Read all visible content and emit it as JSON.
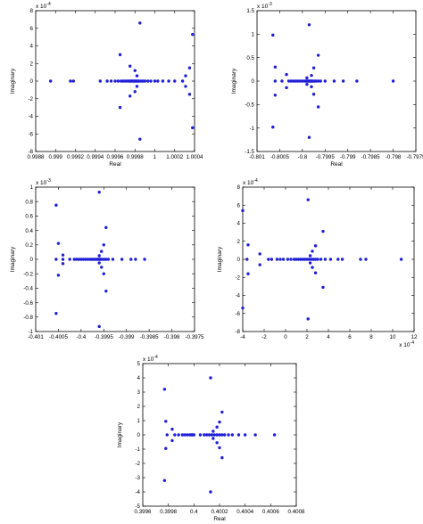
{
  "point_color": "#1f1fd6",
  "chart_data": [
    {
      "type": "scatter",
      "xlabel": "Real",
      "ylabel": "Imaginary",
      "xlim": [
        0.9988,
        1.0004
      ],
      "ylim": [
        -8,
        8
      ],
      "xticks": [
        0.9988,
        0.999,
        0.9992,
        0.9994,
        0.9996,
        0.9998,
        1,
        1.0002,
        1.0004
      ],
      "xtick_labels": [
        "0.9988",
        "0.999",
        "0.9992",
        "0.9994",
        "0.9996",
        "0.9998",
        "1",
        "1.0002",
        "1.0004"
      ],
      "yticks": [
        -8,
        -6,
        -4,
        -2,
        0,
        2,
        4,
        6,
        8
      ],
      "ytick_labels": [
        "-8",
        "-6",
        "-4",
        "-2",
        "0",
        "2",
        "4",
        "6",
        "8"
      ],
      "x_exponent": "",
      "y_exponent": "x 10^-4",
      "points": [
        [
          0.99895,
          0
        ],
        [
          0.99915,
          0
        ],
        [
          0.99918,
          0
        ],
        [
          0.99945,
          0
        ],
        [
          0.99952,
          0
        ],
        [
          0.99956,
          0
        ],
        [
          0.9996,
          0
        ],
        [
          0.99963,
          0
        ],
        [
          0.99966,
          0
        ],
        [
          0.99968,
          0
        ],
        [
          0.9997,
          0
        ],
        [
          0.99972,
          0
        ],
        [
          0.99974,
          0
        ],
        [
          0.99975,
          0
        ],
        [
          0.99976,
          0
        ],
        [
          0.99977,
          0
        ],
        [
          0.99978,
          0
        ],
        [
          0.99979,
          0
        ],
        [
          0.9998,
          0
        ],
        [
          0.99981,
          0
        ],
        [
          0.99982,
          0
        ],
        [
          0.99983,
          0
        ],
        [
          0.99984,
          0
        ],
        [
          0.99986,
          0
        ],
        [
          0.99988,
          0
        ],
        [
          0.9999,
          0
        ],
        [
          0.99993,
          0
        ],
        [
          0.99996,
          0
        ],
        [
          1.0,
          0
        ],
        [
          1.00003,
          0
        ],
        [
          1.00008,
          0
        ],
        [
          1.00014,
          0
        ],
        [
          1.0002,
          0
        ],
        [
          1.00028,
          0
        ],
        [
          0.99965,
          3.0
        ],
        [
          0.99965,
          -3.0
        ],
        [
          0.99975,
          1.7
        ],
        [
          0.99975,
          -1.7
        ],
        [
          0.9998,
          1.2
        ],
        [
          0.9998,
          -1.2
        ],
        [
          0.99982,
          0.6
        ],
        [
          0.99982,
          -0.6
        ],
        [
          0.99985,
          6.6
        ],
        [
          0.99985,
          -6.6
        ],
        [
          1.00038,
          5.3
        ],
        [
          1.00038,
          -5.3
        ],
        [
          1.00035,
          1.5
        ],
        [
          1.00035,
          -1.5
        ],
        [
          1.00031,
          0.6
        ],
        [
          1.00031,
          -0.6
        ]
      ]
    },
    {
      "type": "scatter",
      "xlabel": "Real",
      "ylabel": "Imaginary",
      "xlim": [
        -0.801,
        -0.7975
      ],
      "ylim": [
        -1.5,
        1.5
      ],
      "xticks": [
        -0.801,
        -0.8005,
        -0.8,
        -0.7995,
        -0.799,
        -0.7985,
        -0.798,
        -0.7975
      ],
      "xtick_labels": [
        "-0.801",
        "-0.8005",
        "-0.8",
        "-0.7995",
        "-0.799",
        "-0.7985",
        "-0.798",
        "-0.7975"
      ],
      "yticks": [
        -1.5,
        -1,
        -0.5,
        0,
        0.5,
        1,
        1.5
      ],
      "ytick_labels": [
        "-1.5",
        "-1",
        "-0.5",
        "0",
        "0.5",
        "1",
        "1.5"
      ],
      "x_exponent": "",
      "y_exponent": "x 10^-3",
      "points": [
        [
          -0.8006,
          0
        ],
        [
          -0.80045,
          0
        ],
        [
          -0.8003,
          0
        ],
        [
          -0.80025,
          0
        ],
        [
          -0.8002,
          0
        ],
        [
          -0.80015,
          0
        ],
        [
          -0.8001,
          0
        ],
        [
          -0.80005,
          0
        ],
        [
          -0.8,
          0
        ],
        [
          -0.79995,
          0
        ],
        [
          -0.79992,
          0
        ],
        [
          -0.7999,
          0
        ],
        [
          -0.79988,
          0
        ],
        [
          -0.79986,
          0
        ],
        [
          -0.79984,
          0
        ],
        [
          -0.79982,
          0
        ],
        [
          -0.7998,
          0
        ],
        [
          -0.79978,
          0
        ],
        [
          -0.79976,
          0
        ],
        [
          -0.79973,
          0
        ],
        [
          -0.7997,
          0
        ],
        [
          -0.79965,
          0
        ],
        [
          -0.7996,
          0
        ],
        [
          -0.7995,
          0
        ],
        [
          -0.7993,
          0
        ],
        [
          -0.7991,
          0
        ],
        [
          -0.7988,
          0
        ],
        [
          -0.798,
          0
        ],
        [
          -0.80065,
          0.98
        ],
        [
          -0.80065,
          -0.98
        ],
        [
          -0.8006,
          0.3
        ],
        [
          -0.8006,
          -0.3
        ],
        [
          -0.80035,
          0.14
        ],
        [
          -0.80035,
          -0.14
        ],
        [
          -0.79985,
          1.2
        ],
        [
          -0.79985,
          -1.2
        ],
        [
          -0.79965,
          0.55
        ],
        [
          -0.79965,
          -0.55
        ],
        [
          -0.79975,
          0.28
        ],
        [
          -0.79975,
          -0.28
        ],
        [
          -0.7998,
          0.12
        ],
        [
          -0.7998,
          -0.12
        ],
        [
          -0.7999,
          0.07
        ],
        [
          -0.7999,
          -0.07
        ]
      ]
    },
    {
      "type": "scatter",
      "xlabel": "",
      "ylabel": "Imaginary",
      "xlim": [
        -0.401,
        -0.3975
      ],
      "ylim": [
        -1,
        1
      ],
      "xticks": [
        -0.401,
        -0.4005,
        -0.4,
        -0.3995,
        -0.399,
        -0.3985,
        -0.398,
        -0.3975
      ],
      "xtick_labels": [
        "-0.401",
        "-0.4005",
        "-0.4",
        "-0.3995",
        "-0.399",
        "-0.3985",
        "-0.398",
        "-0.3975"
      ],
      "yticks": [
        -1,
        -0.8,
        -0.6,
        -0.4,
        -0.2,
        0,
        0.2,
        0.4,
        0.6,
        0.8,
        1
      ],
      "ytick_labels": [
        "-1",
        "-0.8",
        "-0.6",
        "-0.4",
        "-0.2",
        "0",
        "0.2",
        "0.4",
        "0.6",
        "0.8",
        "1"
      ],
      "x_exponent": "",
      "y_exponent": "x 10^-3",
      "points": [
        [
          -0.40055,
          0
        ],
        [
          -0.4004,
          0
        ],
        [
          -0.40025,
          0
        ],
        [
          -0.40015,
          0
        ],
        [
          -0.4001,
          0
        ],
        [
          -0.40005,
          0
        ],
        [
          -0.4,
          0
        ],
        [
          -0.39995,
          0
        ],
        [
          -0.3999,
          0
        ],
        [
          -0.39985,
          0
        ],
        [
          -0.3998,
          0
        ],
        [
          -0.39976,
          0
        ],
        [
          -0.39972,
          0
        ],
        [
          -0.39968,
          0
        ],
        [
          -0.39965,
          0
        ],
        [
          -0.39962,
          0
        ],
        [
          -0.3996,
          0
        ],
        [
          -0.39958,
          0
        ],
        [
          -0.39955,
          0
        ],
        [
          -0.3995,
          0
        ],
        [
          -0.39945,
          0
        ],
        [
          -0.3994,
          0
        ],
        [
          -0.3993,
          0
        ],
        [
          -0.3991,
          0
        ],
        [
          -0.3989,
          0
        ],
        [
          -0.3988,
          0
        ],
        [
          -0.3986,
          0
        ],
        [
          -0.40055,
          0.75
        ],
        [
          -0.40055,
          -0.75
        ],
        [
          -0.4005,
          0.22
        ],
        [
          -0.4005,
          -0.22
        ],
        [
          -0.4004,
          0.06
        ],
        [
          -0.4004,
          -0.06
        ],
        [
          -0.3996,
          0.93
        ],
        [
          -0.3996,
          -0.93
        ],
        [
          -0.39945,
          0.44
        ],
        [
          -0.39945,
          -0.44
        ],
        [
          -0.3995,
          0.2
        ],
        [
          -0.3995,
          -0.2
        ],
        [
          -0.39955,
          0.11
        ],
        [
          -0.39955,
          -0.11
        ],
        [
          -0.3996,
          0.05
        ],
        [
          -0.3996,
          -0.05
        ]
      ]
    },
    {
      "type": "scatter",
      "xlabel": "",
      "ylabel": "Imaginary",
      "xlim": [
        -4,
        12
      ],
      "ylim": [
        -8,
        8
      ],
      "xticks": [
        -4,
        -2,
        0,
        2,
        4,
        6,
        8,
        10,
        12
      ],
      "xtick_labels": [
        "-4",
        "-2",
        "0",
        "2",
        "4",
        "6",
        "8",
        "10",
        "12"
      ],
      "yticks": [
        -8,
        -6,
        -4,
        -2,
        0,
        2,
        4,
        6,
        8
      ],
      "ytick_labels": [
        "-8",
        "-6",
        "-4",
        "-2",
        "0",
        "2",
        "4",
        "6",
        "8"
      ],
      "x_exponent": "x 10^-4",
      "y_exponent": "x 10^-4",
      "points": [
        [
          -3.6,
          0
        ],
        [
          -1.6,
          0
        ],
        [
          -1.3,
          0
        ],
        [
          -0.8,
          0
        ],
        [
          -0.5,
          0
        ],
        [
          -0.2,
          0
        ],
        [
          0.2,
          0
        ],
        [
          0.5,
          0
        ],
        [
          0.8,
          0
        ],
        [
          1.0,
          0
        ],
        [
          1.2,
          0
        ],
        [
          1.4,
          0
        ],
        [
          1.6,
          0
        ],
        [
          1.8,
          0
        ],
        [
          2.0,
          0
        ],
        [
          2.2,
          0
        ],
        [
          2.4,
          0
        ],
        [
          2.6,
          0
        ],
        [
          2.8,
          0
        ],
        [
          3.0,
          0
        ],
        [
          3.3,
          0
        ],
        [
          3.7,
          0
        ],
        [
          4.2,
          0
        ],
        [
          4.9,
          0
        ],
        [
          5.3,
          0
        ],
        [
          7.0,
          0
        ],
        [
          7.5,
          0
        ],
        [
          10.8,
          0
        ],
        [
          -4,
          5.4
        ],
        [
          -4,
          -5.4
        ],
        [
          -3.5,
          1.6
        ],
        [
          -3.5,
          -1.6
        ],
        [
          -2.4,
          0.6
        ],
        [
          -2.4,
          -0.6
        ],
        [
          2.1,
          6.6
        ],
        [
          2.1,
          -6.6
        ],
        [
          3.5,
          3.1
        ],
        [
          3.5,
          -3.1
        ],
        [
          2.8,
          1.5
        ],
        [
          2.8,
          -1.5
        ],
        [
          2.5,
          0.9
        ],
        [
          2.5,
          -0.9
        ],
        [
          2.3,
          0.4
        ],
        [
          2.3,
          -0.4
        ]
      ]
    },
    {
      "type": "scatter",
      "xlabel": "Real",
      "ylabel": "Imaginary",
      "xlim": [
        0.3996,
        0.4008
      ],
      "ylim": [
        -5,
        5
      ],
      "xticks": [
        0.3996,
        0.3998,
        0.4,
        0.4002,
        0.4004,
        0.4006,
        0.4008
      ],
      "xtick_labels": [
        "0.3996",
        "0.3998",
        "0.4",
        "0.4002",
        "0.4004",
        "0.4006",
        "0.4008"
      ],
      "yticks": [
        -5,
        -4,
        -3,
        -2,
        -1,
        0,
        1,
        2,
        3,
        4,
        5
      ],
      "ytick_labels": [
        "-5",
        "-4",
        "-3",
        "-2",
        "-1",
        "0",
        "1",
        "2",
        "3",
        "4",
        "5"
      ],
      "x_exponent": "",
      "y_exponent": "x 10^-4",
      "points": [
        [
          0.39979,
          0
        ],
        [
          0.39985,
          0
        ],
        [
          0.39988,
          0
        ],
        [
          0.39991,
          0
        ],
        [
          0.39993,
          0
        ],
        [
          0.39995,
          0
        ],
        [
          0.39997,
          0
        ],
        [
          0.39998,
          0
        ],
        [
          0.39999,
          0
        ],
        [
          0.4,
          0
        ],
        [
          0.40005,
          0
        ],
        [
          0.40008,
          0
        ],
        [
          0.4001,
          0
        ],
        [
          0.40012,
          0
        ],
        [
          0.40014,
          0
        ],
        [
          0.40016,
          0
        ],
        [
          0.40018,
          0
        ],
        [
          0.4002,
          0
        ],
        [
          0.40022,
          0
        ],
        [
          0.40024,
          0
        ],
        [
          0.40027,
          0
        ],
        [
          0.4003,
          0
        ],
        [
          0.40035,
          0
        ],
        [
          0.4004,
          0
        ],
        [
          0.40048,
          0
        ],
        [
          0.40063,
          0
        ],
        [
          0.39977,
          3.2
        ],
        [
          0.39977,
          -3.2
        ],
        [
          0.39978,
          0.95
        ],
        [
          0.39978,
          -0.95
        ],
        [
          0.39983,
          0.4
        ],
        [
          0.39983,
          -0.4
        ],
        [
          0.40013,
          4.0
        ],
        [
          0.40013,
          -4.0
        ],
        [
          0.40022,
          1.6
        ],
        [
          0.40022,
          -1.6
        ],
        [
          0.4002,
          0.9
        ],
        [
          0.4002,
          -0.9
        ],
        [
          0.40018,
          0.55
        ],
        [
          0.40018,
          -0.55
        ],
        [
          0.40015,
          0.25
        ],
        [
          0.40015,
          -0.25
        ]
      ]
    }
  ]
}
